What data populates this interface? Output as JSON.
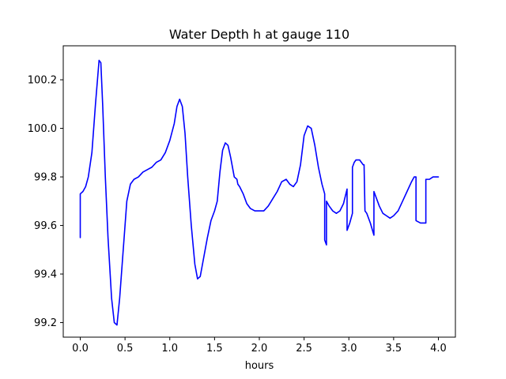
{
  "chart_data": {
    "type": "line",
    "title": "Water Depth h at gauge 110",
    "xlabel": "hours",
    "ylabel": "",
    "xlim": [
      -0.19,
      4.19
    ],
    "ylim": [
      99.14,
      100.34
    ],
    "xticks": [
      0.0,
      0.5,
      1.0,
      1.5,
      2.0,
      2.5,
      3.0,
      3.5,
      4.0
    ],
    "xtick_labels": [
      "0.0",
      "0.5",
      "1.0",
      "1.5",
      "2.0",
      "2.5",
      "3.0",
      "3.5",
      "4.0"
    ],
    "yticks": [
      99.2,
      99.4,
      99.6,
      99.8,
      100.0,
      100.2
    ],
    "ytick_labels": [
      "99.2",
      "99.4",
      "99.6",
      "99.8",
      "100.0",
      "100.2"
    ],
    "grid": false,
    "series": [
      {
        "name": "",
        "color": "#0000ff",
        "x": [
          0.0,
          0.0,
          0.03,
          0.06,
          0.09,
          0.13,
          0.17,
          0.21,
          0.23,
          0.25,
          0.28,
          0.31,
          0.35,
          0.38,
          0.41,
          0.44,
          0.48,
          0.52,
          0.56,
          0.6,
          0.65,
          0.7,
          0.75,
          0.8,
          0.85,
          0.9,
          0.95,
          1.0,
          1.05,
          1.08,
          1.11,
          1.14,
          1.17,
          1.2,
          1.24,
          1.28,
          1.31,
          1.34,
          1.38,
          1.42,
          1.46,
          1.5,
          1.53,
          1.56,
          1.59,
          1.62,
          1.65,
          1.68,
          1.72,
          1.75,
          1.76,
          1.78,
          1.82,
          1.86,
          1.9,
          1.95,
          2.0,
          2.05,
          2.1,
          2.15,
          2.2,
          2.25,
          2.3,
          2.34,
          2.38,
          2.42,
          2.46,
          2.5,
          2.54,
          2.58,
          2.62,
          2.66,
          2.7,
          2.73,
          2.73,
          2.75,
          2.75,
          2.78,
          2.82,
          2.86,
          2.9,
          2.94,
          2.98,
          2.98,
          3.01,
          3.04,
          3.04,
          3.06,
          3.08,
          3.1,
          3.12,
          3.14,
          3.16,
          3.17,
          3.18,
          3.2,
          3.24,
          3.28,
          3.28,
          3.3,
          3.34,
          3.38,
          3.42,
          3.46,
          3.5,
          3.55,
          3.6,
          3.65,
          3.7,
          3.73,
          3.75,
          3.75,
          3.8,
          3.86,
          3.86,
          3.9,
          3.94,
          3.98,
          4.0
        ],
        "values": [
          99.55,
          99.73,
          99.74,
          99.76,
          99.8,
          99.9,
          100.1,
          100.28,
          100.27,
          100.1,
          99.8,
          99.55,
          99.3,
          99.2,
          99.19,
          99.3,
          99.5,
          99.7,
          99.77,
          99.79,
          99.8,
          99.82,
          99.83,
          99.84,
          99.86,
          99.87,
          99.9,
          99.95,
          100.02,
          100.09,
          100.12,
          100.09,
          99.98,
          99.8,
          99.6,
          99.44,
          99.38,
          99.39,
          99.47,
          99.55,
          99.62,
          99.66,
          99.7,
          99.82,
          99.91,
          99.94,
          99.93,
          99.88,
          99.8,
          99.79,
          99.77,
          99.76,
          99.73,
          99.69,
          99.67,
          99.66,
          99.66,
          99.66,
          99.68,
          99.71,
          99.74,
          99.78,
          99.79,
          99.77,
          99.76,
          99.78,
          99.85,
          99.97,
          100.01,
          100.0,
          99.93,
          99.84,
          99.77,
          99.73,
          99.54,
          99.52,
          99.7,
          99.68,
          99.66,
          99.65,
          99.66,
          99.69,
          99.75,
          99.58,
          99.61,
          99.65,
          99.84,
          99.86,
          99.87,
          99.87,
          99.87,
          99.86,
          99.85,
          99.85,
          99.66,
          99.65,
          99.61,
          99.56,
          99.74,
          99.72,
          99.68,
          99.65,
          99.64,
          99.63,
          99.64,
          99.66,
          99.7,
          99.74,
          99.78,
          99.8,
          99.8,
          99.62,
          99.61,
          99.61,
          99.79,
          99.79,
          99.8,
          99.8,
          99.8
        ]
      }
    ]
  }
}
